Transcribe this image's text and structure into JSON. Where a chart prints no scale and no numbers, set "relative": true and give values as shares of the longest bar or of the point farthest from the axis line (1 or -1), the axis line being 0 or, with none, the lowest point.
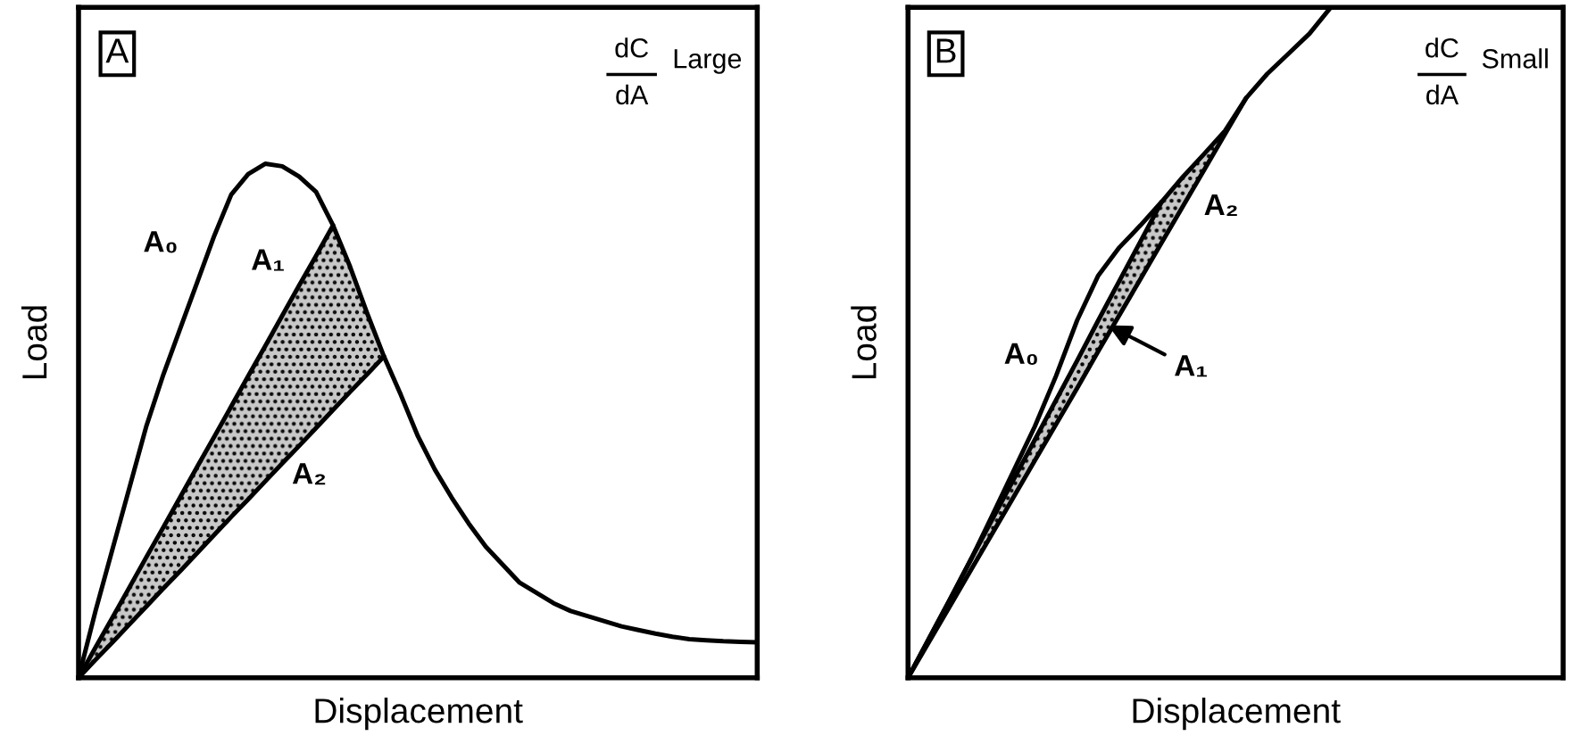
{
  "chart_data": [
    {
      "type": "line",
      "title": "A",
      "xlabel": "Displacement",
      "ylabel": "Load",
      "relative": true,
      "ylim": [
        0,
        1.304
      ],
      "categories": [
        null,
        null,
        null,
        null,
        null,
        null,
        null,
        null,
        null,
        null,
        null,
        null,
        null,
        null,
        null,
        null,
        null,
        null,
        null,
        null,
        null,
        null,
        null,
        null,
        null,
        null,
        null,
        null,
        null,
        null,
        null,
        null,
        null,
        null,
        null,
        null,
        null,
        null,
        null,
        null,
        null
      ],
      "series": [
        {
          "color": "#000000",
          "values": [
            0,
            0.13,
            0.25,
            0.37,
            0.49,
            0.59,
            0.68,
            0.77,
            0.86,
            0.94,
            0.98,
            1.0,
            0.995,
            0.975,
            0.945,
            0.88,
            0.8,
            0.71,
            0.625,
            0.55,
            0.47,
            0.405,
            0.35,
            0.3,
            0.255,
            0.22,
            0.185,
            0.165,
            0.145,
            0.13,
            0.12,
            0.11,
            0.1,
            0.093,
            0.086,
            0.08,
            0.075,
            0.073,
            0.071,
            0.07,
            0.069
          ]
        },
        {
          "color": "#000000",
          "values": [
            0,
            0.059,
            0.117,
            0.176,
            0.235,
            0.293,
            0.352,
            0.411,
            0.469,
            0.528,
            0.587,
            0.645,
            0.704,
            0.763,
            0.821,
            0.88,
            null,
            null,
            null,
            null,
            null,
            null,
            null,
            null,
            null,
            null,
            null,
            null,
            null,
            null,
            null,
            null,
            null,
            null,
            null,
            null,
            null,
            null,
            null,
            null,
            null
          ]
        },
        {
          "color": "#000000",
          "values": [
            0,
            0.035,
            0.069,
            0.104,
            0.139,
            0.174,
            0.208,
            0.243,
            0.278,
            0.313,
            0.347,
            0.382,
            0.417,
            0.451,
            0.486,
            0.521,
            0.556,
            0.59,
            0.625,
            null,
            null,
            null,
            null,
            null,
            null,
            null,
            null,
            null,
            null,
            null,
            null,
            null,
            null,
            null,
            null,
            null,
            null,
            null,
            null,
            null,
            null
          ],
          "upper": [
            0,
            0.059,
            0.117,
            0.176,
            0.235,
            0.293,
            0.352,
            0.411,
            0.469,
            0.528,
            0.587,
            0.645,
            0.704,
            0.763,
            0.821,
            0.88,
            0.8,
            0.71,
            0.625,
            null,
            null,
            null,
            null,
            null,
            null,
            null,
            null,
            null,
            null,
            null,
            null,
            null,
            null,
            null,
            null,
            null,
            null,
            null,
            null,
            null,
            null
          ],
          "lower": [
            0,
            0.035,
            0.069,
            0.104,
            0.139,
            0.174,
            0.208,
            0.243,
            0.278,
            0.313,
            0.347,
            0.382,
            0.417,
            0.451,
            0.486,
            0.521,
            0.556,
            0.59,
            0.625,
            null,
            null,
            null,
            null,
            null,
            null,
            null,
            null,
            null,
            null,
            null,
            null,
            null,
            null,
            null,
            null,
            null,
            null,
            null,
            null,
            null,
            null
          ]
        }
      ],
      "annotations": [
        "A₀",
        "A₁",
        "A₂",
        "dC",
        "dA",
        "Large"
      ]
    },
    {
      "type": "line",
      "title": "B",
      "xlabel": "Displacement",
      "ylabel": "Load",
      "relative": true,
      "ylim": [
        0,
        1.0
      ],
      "categories": [
        null,
        null,
        null,
        null,
        null,
        null,
        null,
        null,
        null,
        null,
        null,
        null,
        null,
        null,
        null,
        null,
        null,
        null,
        null,
        null,
        null,
        null,
        null,
        null,
        null,
        null,
        null,
        null,
        null,
        null,
        null,
        null
      ],
      "series": [
        {
          "color": "#000000",
          "values": [
            0,
            0.059,
            0.118,
            0.178,
            0.243,
            0.309,
            0.375,
            0.45,
            0.533,
            0.6,
            0.642,
            0.675,
            0.71,
            0.747,
            0.781,
            0.816,
            0.865,
            0.901,
            0.931,
            0.961,
            1.0,
            null,
            null,
            null,
            null,
            null,
            null,
            null,
            null,
            null,
            null,
            null
          ]
        },
        {
          "color": "#000000",
          "values": [
            0,
            0.059,
            0.118,
            0.178,
            0.237,
            0.296,
            0.355,
            0.414,
            0.473,
            0.533,
            0.592,
            0.651,
            0.71,
            null,
            null,
            null,
            null,
            null,
            null,
            null,
            null,
            null,
            null,
            null,
            null,
            null,
            null,
            null,
            null,
            null,
            null,
            null
          ]
        },
        {
          "color": "#000000",
          "values": [
            0,
            0.054,
            0.108,
            0.162,
            0.216,
            0.27,
            0.324,
            0.378,
            0.432,
            0.487,
            0.541,
            0.595,
            0.649,
            0.703,
            0.757,
            0.811,
            0.865,
            null,
            null,
            null,
            null,
            null,
            null,
            null,
            null,
            null,
            null,
            null,
            null,
            null,
            null,
            null
          ],
          "upper": [
            0,
            0.059,
            0.118,
            0.178,
            0.237,
            0.296,
            0.355,
            0.414,
            0.473,
            0.533,
            0.592,
            0.651,
            0.71,
            0.747,
            0.781,
            0.816,
            0.865,
            null,
            null,
            null,
            null,
            null,
            null,
            null,
            null,
            null,
            null,
            null,
            null,
            null,
            null,
            null
          ],
          "lower": [
            0,
            0.054,
            0.108,
            0.162,
            0.216,
            0.27,
            0.324,
            0.378,
            0.432,
            0.487,
            0.541,
            0.595,
            0.649,
            0.703,
            0.757,
            0.811,
            0.865,
            null,
            null,
            null,
            null,
            null,
            null,
            null,
            null,
            null,
            null,
            null,
            null,
            null,
            null,
            null
          ]
        }
      ],
      "annotations": [
        "A₀",
        "A₁",
        "A₂",
        "dC",
        "dA",
        "Small"
      ]
    }
  ]
}
